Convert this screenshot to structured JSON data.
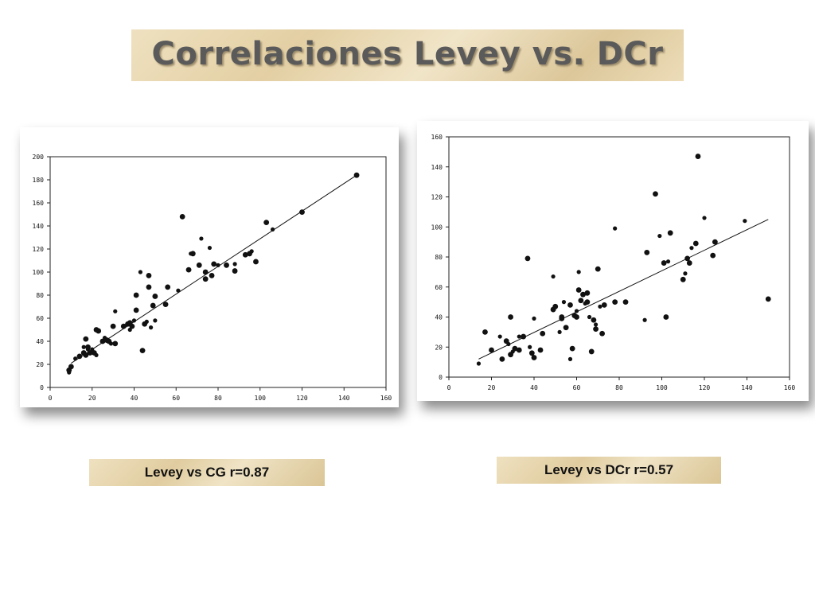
{
  "slide": {
    "title": "Correlaciones Levey vs. DCr",
    "caption_left": "Levey vs CG  r=0.87",
    "caption_right": "Levey vs DCr   r=0.57"
  },
  "chart_data": [
    {
      "type": "scatter",
      "title": "",
      "xlabel": "",
      "ylabel": "",
      "xlim": [
        0,
        160
      ],
      "ylim": [
        0,
        200
      ],
      "xticks": [
        0,
        20,
        40,
        60,
        80,
        100,
        120,
        140,
        160
      ],
      "yticks": [
        0,
        20,
        40,
        60,
        80,
        100,
        120,
        140,
        160,
        180,
        200
      ],
      "grid": false,
      "trendline": [
        [
          10,
          21
        ],
        [
          146,
          184
        ]
      ],
      "points": [
        [
          9,
          13
        ],
        [
          9,
          15
        ],
        [
          10,
          18
        ],
        [
          12,
          25
        ],
        [
          14,
          27
        ],
        [
          16,
          30
        ],
        [
          16,
          35
        ],
        [
          17,
          42
        ],
        [
          17,
          28
        ],
        [
          18,
          33
        ],
        [
          18,
          35
        ],
        [
          19,
          30
        ],
        [
          20,
          33
        ],
        [
          21,
          30
        ],
        [
          22,
          50
        ],
        [
          22,
          28
        ],
        [
          23,
          49
        ],
        [
          25,
          40
        ],
        [
          26,
          43
        ],
        [
          27,
          41
        ],
        [
          28,
          40
        ],
        [
          29,
          38
        ],
        [
          30,
          53
        ],
        [
          31,
          38
        ],
        [
          31,
          66
        ],
        [
          35,
          53
        ],
        [
          37,
          55
        ],
        [
          38,
          50
        ],
        [
          38,
          56
        ],
        [
          39,
          53
        ],
        [
          40,
          58
        ],
        [
          41,
          67
        ],
        [
          41,
          80
        ],
        [
          43,
          100
        ],
        [
          44,
          32
        ],
        [
          45,
          55
        ],
        [
          46,
          57
        ],
        [
          47,
          97
        ],
        [
          47,
          87
        ],
        [
          48,
          52
        ],
        [
          49,
          71
        ],
        [
          50,
          79
        ],
        [
          50,
          58
        ],
        [
          55,
          72
        ],
        [
          56,
          87
        ],
        [
          61,
          84
        ],
        [
          63,
          148
        ],
        [
          66,
          102
        ],
        [
          67,
          116
        ],
        [
          68,
          116
        ],
        [
          71,
          106
        ],
        [
          72,
          129
        ],
        [
          74,
          94
        ],
        [
          74,
          100
        ],
        [
          76,
          121
        ],
        [
          77,
          97
        ],
        [
          78,
          107
        ],
        [
          80,
          106
        ],
        [
          84,
          106
        ],
        [
          88,
          101
        ],
        [
          88,
          107
        ],
        [
          93,
          115
        ],
        [
          95,
          116
        ],
        [
          96,
          118
        ],
        [
          98,
          109
        ],
        [
          103,
          143
        ],
        [
          106,
          137
        ],
        [
          120,
          152
        ],
        [
          146,
          184
        ]
      ]
    },
    {
      "type": "scatter",
      "title": "",
      "xlabel": "",
      "ylabel": "",
      "xlim": [
        0,
        160
      ],
      "ylim": [
        0,
        160
      ],
      "xticks": [
        0,
        20,
        40,
        60,
        80,
        100,
        120,
        140,
        160
      ],
      "yticks": [
        0,
        20,
        40,
        60,
        80,
        100,
        120,
        140,
        160
      ],
      "grid": false,
      "trendline": [
        [
          14,
          12
        ],
        [
          150,
          105
        ]
      ],
      "points": [
        [
          14,
          9
        ],
        [
          17,
          30
        ],
        [
          20,
          18
        ],
        [
          24,
          27
        ],
        [
          25,
          12
        ],
        [
          27,
          24
        ],
        [
          28,
          22
        ],
        [
          29,
          40
        ],
        [
          29,
          15
        ],
        [
          30,
          17
        ],
        [
          31,
          19
        ],
        [
          33,
          18
        ],
        [
          33,
          27
        ],
        [
          35,
          27
        ],
        [
          37,
          79
        ],
        [
          38,
          20
        ],
        [
          39,
          16
        ],
        [
          40,
          13
        ],
        [
          40,
          39
        ],
        [
          43,
          18
        ],
        [
          44,
          29
        ],
        [
          49,
          67
        ],
        [
          49,
          45
        ],
        [
          50,
          47
        ],
        [
          52,
          30
        ],
        [
          53,
          39
        ],
        [
          53,
          40
        ],
        [
          54,
          50
        ],
        [
          55,
          33
        ],
        [
          57,
          48
        ],
        [
          57,
          12
        ],
        [
          58,
          19
        ],
        [
          59,
          41
        ],
        [
          60,
          44
        ],
        [
          60,
          40
        ],
        [
          61,
          58
        ],
        [
          61,
          70
        ],
        [
          62,
          51
        ],
        [
          63,
          55
        ],
        [
          64,
          49
        ],
        [
          65,
          50
        ],
        [
          65,
          56
        ],
        [
          66,
          40
        ],
        [
          67,
          17
        ],
        [
          68,
          38
        ],
        [
          69,
          35
        ],
        [
          69,
          32
        ],
        [
          70,
          72
        ],
        [
          71,
          47
        ],
        [
          72,
          29
        ],
        [
          73,
          48
        ],
        [
          78,
          99
        ],
        [
          78,
          50
        ],
        [
          83,
          50
        ],
        [
          92,
          38
        ],
        [
          93,
          83
        ],
        [
          97,
          122
        ],
        [
          99,
          94
        ],
        [
          101,
          76
        ],
        [
          102,
          40
        ],
        [
          103,
          77
        ],
        [
          104,
          96
        ],
        [
          110,
          65
        ],
        [
          111,
          69
        ],
        [
          112,
          79
        ],
        [
          113,
          76
        ],
        [
          114,
          86
        ],
        [
          116,
          89
        ],
        [
          117,
          147
        ],
        [
          120,
          106
        ],
        [
          124,
          81
        ],
        [
          125,
          90
        ],
        [
          139,
          104
        ],
        [
          150,
          52
        ]
      ]
    }
  ]
}
